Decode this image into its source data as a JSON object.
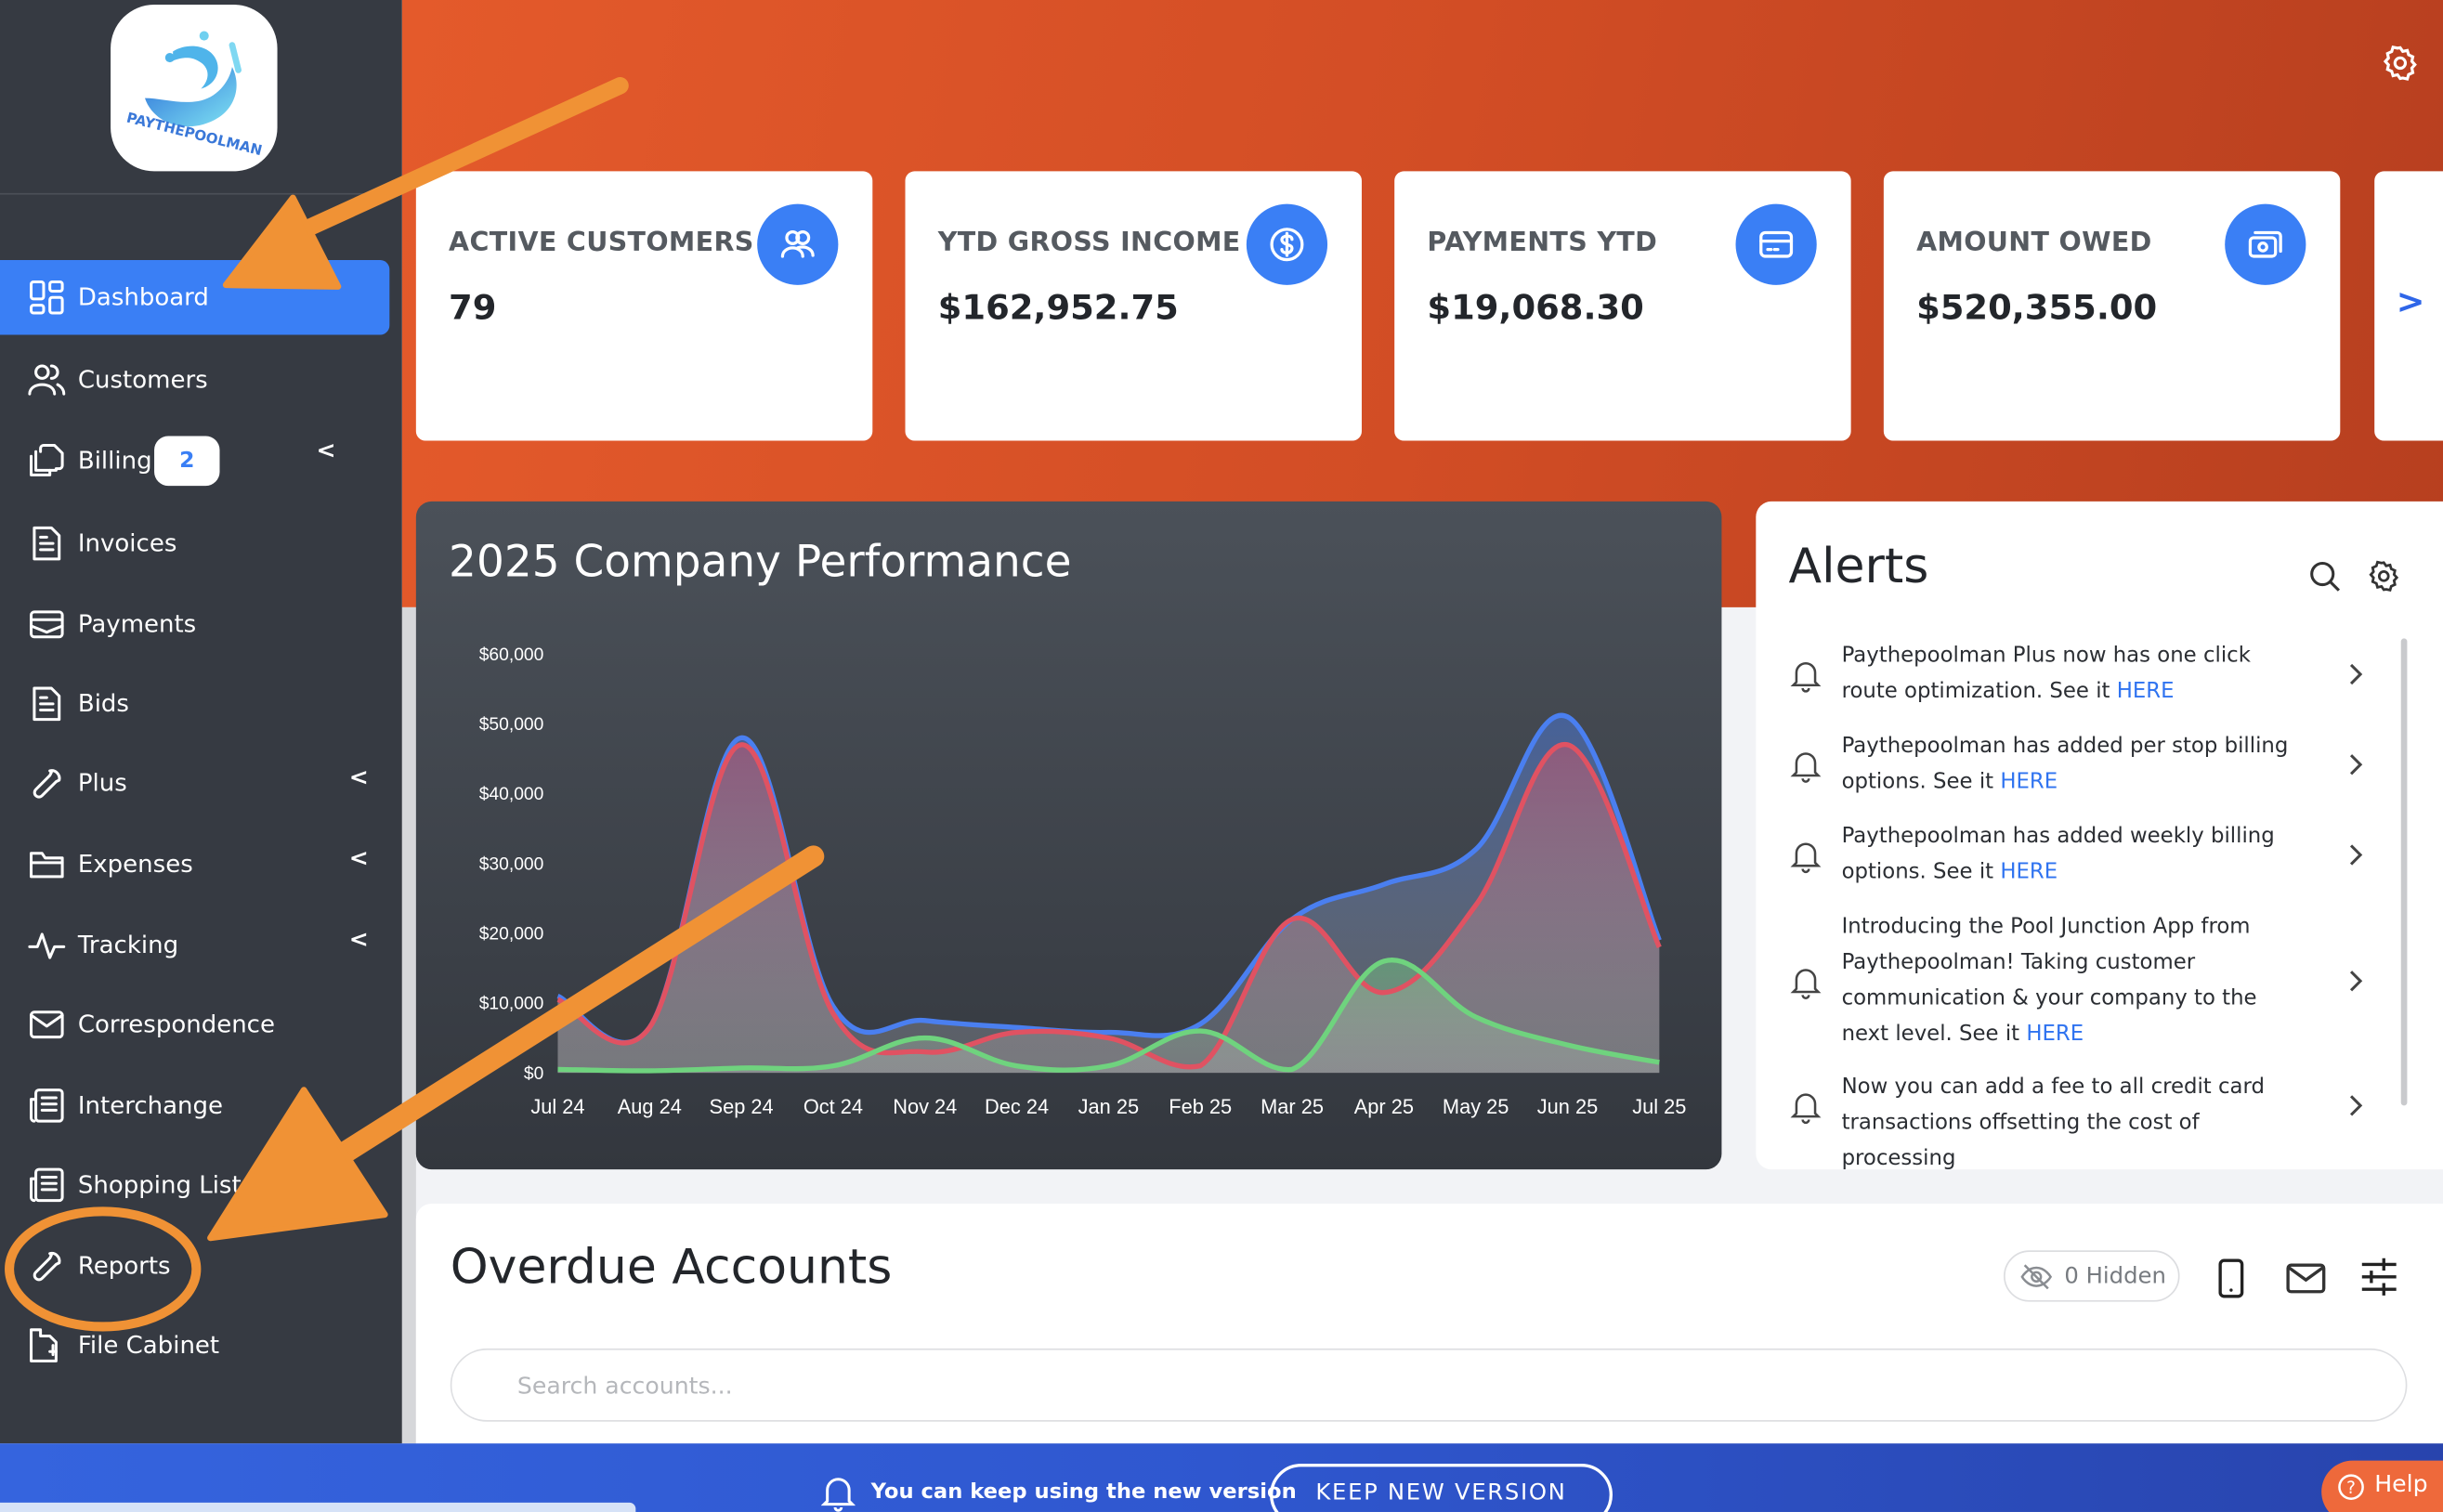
{
  "brand": {
    "logo_text": "PAYTHEPOOLMAN"
  },
  "sidebar": {
    "items": [
      {
        "label": "Dashboard",
        "icon": "dashboard-grid-icon",
        "active": true
      },
      {
        "label": "Customers",
        "icon": "users-icon"
      },
      {
        "label": "Billing",
        "icon": "copy-documents-icon",
        "badge": "2",
        "expandable": true
      },
      {
        "label": "Invoices",
        "icon": "document-icon"
      },
      {
        "label": "Payments",
        "icon": "envelope-tray-icon"
      },
      {
        "label": "Bids",
        "icon": "document-icon"
      },
      {
        "label": "Plus",
        "icon": "wrench-icon",
        "expandable": true
      },
      {
        "label": "Expenses",
        "icon": "folder-icon",
        "expandable": true
      },
      {
        "label": "Tracking",
        "icon": "pulse-icon",
        "expandable": true
      },
      {
        "label": "Correspondence",
        "icon": "mail-icon"
      },
      {
        "label": "Interchange",
        "icon": "newspaper-icon"
      },
      {
        "label": "Shopping List",
        "icon": "newspaper-icon"
      },
      {
        "label": "Reports",
        "icon": "wrench-icon"
      },
      {
        "label": "File Cabinet",
        "icon": "file-cabinet-icon"
      }
    ],
    "expand_glyph": "<"
  },
  "stats": [
    {
      "title": "ACTIVE CUSTOMERS",
      "value": "79",
      "icon": "users-icon"
    },
    {
      "title": "YTD GROSS INCOME",
      "value": "$162,952.75",
      "icon": "dollar-icon"
    },
    {
      "title": "PAYMENTS YTD",
      "value": "$19,068.30",
      "icon": "credit-card-icon"
    },
    {
      "title": "AMOUNT OWED",
      "value": "$520,355.00",
      "icon": "cash-icon"
    }
  ],
  "stats_next": ">",
  "colors": {
    "accent": "#3a7ff5",
    "header": "#e45a2b",
    "sidebar": "#363a42",
    "annotation": "#f09235",
    "blue_series": "#4a7ff0",
    "red_series": "#e05262",
    "green_series": "#6fd37e"
  },
  "chart_data": {
    "type": "area",
    "title": "2025 Company Performance",
    "categories": [
      "Jul 24",
      "Aug 24",
      "Sep 24",
      "Oct 24",
      "Nov 24",
      "Dec 24",
      "Jan 25",
      "Feb 25",
      "Mar 25",
      "Apr 25",
      "May 25",
      "Jun 25",
      "Jul 25"
    ],
    "yticks": [
      "$0",
      "$10,000",
      "$20,000",
      "$30,000",
      "$40,000",
      "$50,000",
      "$60,000"
    ],
    "ylim": [
      0,
      60000
    ],
    "grid": false,
    "series": [
      {
        "color": "#4a7ff0",
        "values": [
          11000,
          6500,
          48000,
          9500,
          7500,
          6500,
          5800,
          7000,
          22000,
          27000,
          32000,
          51000,
          19000
        ]
      },
      {
        "color": "#e05262",
        "values": [
          10500,
          6500,
          47000,
          8500,
          3000,
          5800,
          5000,
          1000,
          22000,
          11500,
          24000,
          47000,
          18000
        ]
      },
      {
        "color": "#6fd37e",
        "values": [
          500,
          300,
          700,
          1000,
          5000,
          1000,
          1000,
          6000,
          500,
          16000,
          8000,
          4000,
          1500
        ]
      }
    ]
  },
  "alerts": {
    "title": "Alerts",
    "items": [
      {
        "text": "Paythepoolman Plus now has one click route optimization. See it ",
        "link": "HERE"
      },
      {
        "text": "Paythepoolman has added per stop billing options. See it ",
        "link": "HERE"
      },
      {
        "text": "Paythepoolman has added weekly billing options. See it ",
        "link": "HERE"
      },
      {
        "text": "Introducing the Pool Junction App from Paythepoolman! Taking customer communication & your company to the next level. See it ",
        "link": "HERE"
      },
      {
        "text": "Now you can add a fee to all credit card transactions offsetting the cost of processing",
        "link": ""
      }
    ]
  },
  "overdue": {
    "title": "Overdue Accounts",
    "hidden_label": "0 Hidden",
    "search_placeholder": "Search accounts...",
    "search_value": ""
  },
  "banner": {
    "message": "You can keep using the new version",
    "button": "KEEP NEW VERSION",
    "help": "Help"
  }
}
